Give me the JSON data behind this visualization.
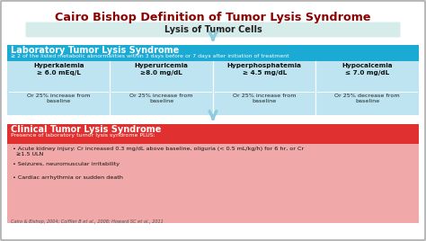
{
  "title": "Cairo Bishop Definition of Tumor Lysis Syndrome",
  "title_color": "#8B0000",
  "lysis_box_text": "Lysis of Tumor Cells",
  "lysis_box_bg": "#d6ecea",
  "lab_header": "Laboratory Tumor Lysis Syndrome",
  "lab_subheader": "≥ 2 of the listed metabolic abnormalities within 3 days before or 7 days after initiation of treatment",
  "lab_header_bg": "#1aaad4",
  "lab_criteria_bg": "#bde4f0",
  "lab_criteria": [
    {
      "name": "Hyperkalemia\n≥ 6.0 mEq/L",
      "sub": "Or 25% increase from\nbaseline"
    },
    {
      "name": "Hyperuricemia\n≥8.0 mg/dL",
      "sub": "Or 25% increase from\nbaseline"
    },
    {
      "name": "Hyperphosphatemia\n≥ 4.5 mg/dL",
      "sub": "Or 25% increase from\nbaseline"
    },
    {
      "name": "Hypocalcemia\n≤ 7.0 mg/dL",
      "sub": "Or 25% decrease from\nbaseline"
    }
  ],
  "clinical_header": "Clinical Tumor Lysis Syndrome",
  "clinical_subheader": "Presence of laboratory tumor lysis syndrome PLUS:",
  "clinical_header_bg": "#e03030",
  "clinical_body_bg": "#f0a8a8",
  "clinical_bullets": [
    "• Acute kidney injury: Cr increased 0.3 mg/dL above baseline, oliguria (< 0.5 mL/kg/h) for 6 hr, or Cr\n  ≥1.5 ULN",
    "• Seizures, neuromuscular irritability",
    "• Cardiac arrhythmia or sudden death"
  ],
  "footnote": "Cairo & Bishop, 2004; Coiffier B et al., 2008; Howard SC et al., 2011",
  "outer_bg": "#d0d0d0",
  "inner_bg": "#ffffff",
  "arrow_color": "#90cce0"
}
